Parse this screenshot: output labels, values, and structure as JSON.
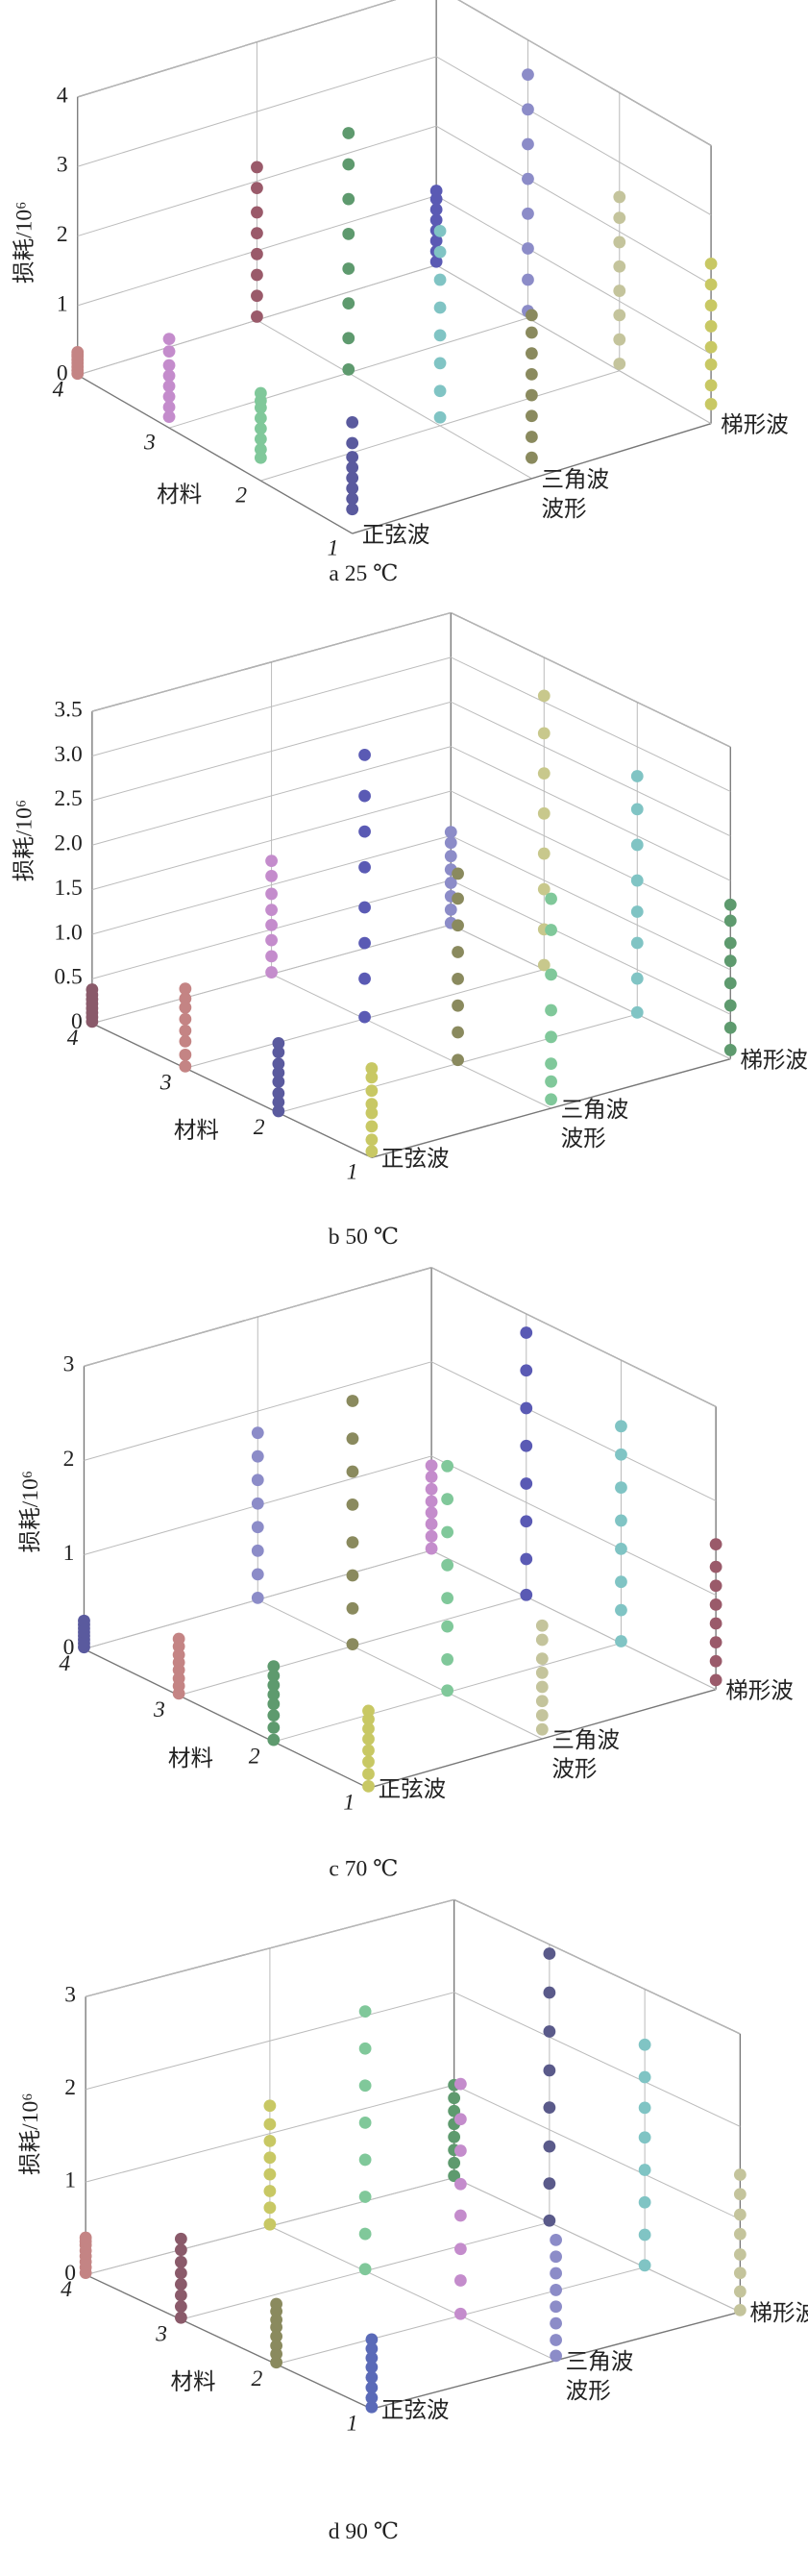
{
  "chart_data": [
    {
      "type": "scatter3d",
      "caption": "a  25 ℃",
      "ylabel": "损耗/10⁶",
      "xlabel": "波形",
      "zlabel": "材料",
      "x_categories": [
        "正弦波",
        "三角波",
        "梯形波"
      ],
      "z_categories": [
        "1",
        "2",
        "3",
        "4"
      ],
      "ylim": [
        0,
        4
      ],
      "yticks": [
        0,
        1,
        2,
        3,
        4
      ],
      "grid": true,
      "colors": [
        [
          "#5a5a9e",
          "#8a8a5e",
          "#c8c864"
        ],
        [
          "#80c89a",
          "#80c4c4",
          "#c4c49c"
        ],
        [
          "#c48ccc",
          "#5e9a6e",
          "#8c8cc8"
        ],
        [
          "#c48484",
          "#9a5a6a",
          "#5a5ab4"
        ]
      ],
      "values": [
        [
          [
            0.35,
            0.5,
            0.65,
            0.8,
            0.95,
            1.1,
            1.3,
            1.6
          ],
          [
            0.3,
            0.6,
            0.9,
            1.2,
            1.5,
            1.8,
            2.1,
            2.35
          ],
          [
            0.28,
            0.55,
            0.85,
            1.1,
            1.4,
            1.7,
            2.0,
            2.3
          ]
        ],
        [
          [
            0.33,
            0.45,
            0.6,
            0.75,
            0.9,
            1.05,
            1.15,
            1.26
          ],
          [
            0.12,
            0.5,
            0.9,
            1.3,
            1.7,
            2.1,
            2.5,
            2.8
          ],
          [
            0.1,
            0.45,
            0.8,
            1.15,
            1.5,
            1.85,
            2.2,
            2.5
          ]
        ],
        [
          [
            0.16,
            0.3,
            0.45,
            0.6,
            0.75,
            0.9,
            1.1,
            1.28
          ],
          [
            0.05,
            0.5,
            1.0,
            1.5,
            2.0,
            2.5,
            3.0,
            3.45
          ],
          [
            0.1,
            0.55,
            1.0,
            1.5,
            2.0,
            2.5,
            3.0,
            3.5
          ]
        ],
        [
          [
            0.02,
            0.07,
            0.12,
            0.17,
            0.22,
            0.27,
            0.3,
            0.33
          ],
          [
            0.05,
            0.35,
            0.65,
            0.95,
            1.25,
            1.55,
            1.9,
            2.2
          ],
          [
            0.05,
            0.2,
            0.35,
            0.5,
            0.65,
            0.8,
            0.95,
            1.07
          ]
        ]
      ]
    },
    {
      "type": "scatter3d",
      "caption": "b  50 ℃",
      "ylabel": "损耗/10⁶",
      "xlabel": "波形",
      "zlabel": "材料",
      "x_categories": [
        "正弦波",
        "三角波",
        "梯形波"
      ],
      "z_categories": [
        "1",
        "2",
        "3",
        "4"
      ],
      "ylim": [
        0,
        3.5
      ],
      "yticks": [
        0,
        0.5,
        {
          "value": 1,
          "label": "1.0"
        },
        1.5,
        {
          "value": 2,
          "label": "2.0"
        },
        2.5,
        {
          "value": 3,
          "label": "3.0"
        },
        3.5
      ],
      "grid": true,
      "colors": [
        [
          "#c8c864",
          "#80c89a",
          "#5e9a6e"
        ],
        [
          "#5a5a9e",
          "#8a8a5e",
          "#80c4c4"
        ],
        [
          "#c48484",
          "#5a5ab4",
          "#c8c88c"
        ],
        [
          "#8a5a6a",
          "#c48ccc",
          "#8c8cc8"
        ]
      ],
      "values": [
        [
          [
            0.07,
            0.2,
            0.35,
            0.5,
            0.6,
            0.75,
            0.9,
            1.0
          ],
          [
            0.1,
            0.3,
            0.5,
            0.8,
            1.1,
            1.5,
            2.0,
            2.35
          ],
          [
            0.1,
            0.35,
            0.6,
            0.85,
            1.1,
            1.3,
            1.55,
            1.73
          ]
        ],
        [
          [
            0.02,
            0.12,
            0.22,
            0.35,
            0.45,
            0.55,
            0.68,
            0.78
          ],
          [
            0.04,
            0.35,
            0.65,
            0.95,
            1.25,
            1.55,
            1.85,
            2.13
          ],
          [
            0.02,
            0.4,
            0.8,
            1.15,
            1.5,
            1.9,
            2.3,
            2.67
          ]
        ],
        [
          [
            0.02,
            0.15,
            0.3,
            0.42,
            0.55,
            0.68,
            0.78,
            0.89
          ],
          [
            0.02,
            0.45,
            0.85,
            1.25,
            1.7,
            2.1,
            2.5,
            2.96
          ],
          [
            0.05,
            0.45,
            0.9,
            1.3,
            1.75,
            2.2,
            2.65,
            3.07
          ]
        ],
        [
          [
            0.02,
            0.07,
            0.12,
            0.17,
            0.22,
            0.27,
            0.32,
            0.38
          ],
          [
            0.02,
            0.2,
            0.38,
            0.55,
            0.72,
            0.9,
            1.1,
            1.27
          ],
          [
            0.02,
            0.17,
            0.32,
            0.47,
            0.62,
            0.77,
            0.92,
            1.04
          ]
        ]
      ]
    },
    {
      "type": "scatter3d",
      "caption": "c  70 ℃",
      "ylabel": "损耗/10⁶",
      "xlabel": "波形",
      "zlabel": "材料",
      "x_categories": [
        "正弦波",
        "三角波",
        "梯形波"
      ],
      "z_categories": [
        "1",
        "2",
        "3",
        "4"
      ],
      "ylim": [
        0,
        3
      ],
      "yticks": [
        0,
        1,
        2,
        3
      ],
      "grid": true,
      "colors": [
        [
          "#c8c864",
          "#c4c49c",
          "#9a5a6a"
        ],
        [
          "#5e9a6e",
          "#80c89a",
          "#80c4c4"
        ],
        [
          "#c48484",
          "#8a8a5e",
          "#5a5ab4"
        ],
        [
          "#5a5a9e",
          "#8c8cc8",
          "#c48ccc"
        ]
      ],
      "values": [
        [
          [
            0.02,
            0.15,
            0.28,
            0.4,
            0.52,
            0.63,
            0.73,
            0.82
          ],
          [
            0.1,
            0.25,
            0.4,
            0.55,
            0.7,
            0.85,
            1.05,
            1.2
          ],
          [
            0.1,
            0.3,
            0.5,
            0.7,
            0.9,
            1.1,
            1.3,
            1.54
          ]
        ],
        [
          [
            0.02,
            0.15,
            0.28,
            0.4,
            0.5,
            0.6,
            0.7,
            0.8
          ],
          [
            0.02,
            0.35,
            0.7,
            1.0,
            1.35,
            1.7,
            2.05,
            2.4
          ],
          [
            0.02,
            0.35,
            0.65,
            1.0,
            1.3,
            1.65,
            2.0,
            2.3
          ]
        ],
        [
          [
            0.02,
            0.1,
            0.18,
            0.27,
            0.35,
            0.43,
            0.52,
            0.6
          ],
          [
            0.02,
            0.4,
            0.75,
            1.1,
            1.5,
            1.85,
            2.2,
            2.6
          ],
          [
            0.02,
            0.4,
            0.8,
            1.2,
            1.6,
            2.0,
            2.4,
            2.8
          ]
        ],
        [
          [
            0.02,
            0.06,
            0.1,
            0.14,
            0.18,
            0.22,
            0.26,
            0.3
          ],
          [
            0.02,
            0.27,
            0.52,
            0.77,
            1.02,
            1.27,
            1.52,
            1.77
          ],
          [
            0.02,
            0.15,
            0.28,
            0.4,
            0.52,
            0.65,
            0.78,
            0.9
          ]
        ]
      ]
    },
    {
      "type": "scatter3d",
      "caption": "d  90 ℃",
      "ylabel": "损耗/10⁶",
      "xlabel": "波形",
      "zlabel": "材料",
      "x_categories": [
        "正弦波",
        "三角波",
        "梯形波"
      ],
      "z_categories": [
        "1",
        "2",
        "3",
        "4"
      ],
      "ylim": [
        0,
        3
      ],
      "yticks": [
        0,
        1,
        2,
        3
      ],
      "grid": true,
      "colors": [
        [
          "#5a6ab8",
          "#8c8cc8",
          "#c4c49c"
        ],
        [
          "#8a8a5e",
          "#c48ccc",
          "#80c4c4"
        ],
        [
          "#8a5a6a",
          "#80c89a",
          "#5a5a8a"
        ],
        [
          "#c48484",
          "#c8c864",
          "#5e9a6e"
        ]
      ],
      "values": [
        [
          [
            0.02,
            0.12,
            0.23,
            0.34,
            0.45,
            0.55,
            0.65,
            0.75
          ],
          [
            0.05,
            0.22,
            0.4,
            0.58,
            0.76,
            0.94,
            1.12,
            1.3
          ],
          [
            0.02,
            0.22,
            0.42,
            0.62,
            0.84,
            1.05,
            1.27,
            1.48
          ]
        ],
        [
          [
            0.02,
            0.11,
            0.2,
            0.3,
            0.4,
            0.48,
            0.57,
            0.65
          ],
          [
            0.02,
            0.38,
            0.72,
            1.08,
            1.42,
            1.78,
            2.12,
            2.5
          ],
          [
            0.02,
            0.35,
            0.7,
            1.05,
            1.4,
            1.72,
            2.05,
            2.4
          ]
        ],
        [
          [
            0.02,
            0.14,
            0.26,
            0.38,
            0.5,
            0.62,
            0.75,
            0.87
          ],
          [
            0.02,
            0.4,
            0.8,
            1.2,
            1.6,
            2.0,
            2.4,
            2.8
          ],
          [
            0.02,
            0.42,
            0.82,
            1.24,
            1.64,
            2.06,
            2.48,
            2.9
          ]
        ],
        [
          [
            0.02,
            0.08,
            0.14,
            0.2,
            0.26,
            0.32,
            0.36,
            0.4
          ],
          [
            0.02,
            0.2,
            0.38,
            0.56,
            0.74,
            0.92,
            1.1,
            1.3
          ],
          [
            0.02,
            0.16,
            0.3,
            0.44,
            0.58,
            0.72,
            0.86,
            1.0
          ]
        ]
      ]
    }
  ]
}
